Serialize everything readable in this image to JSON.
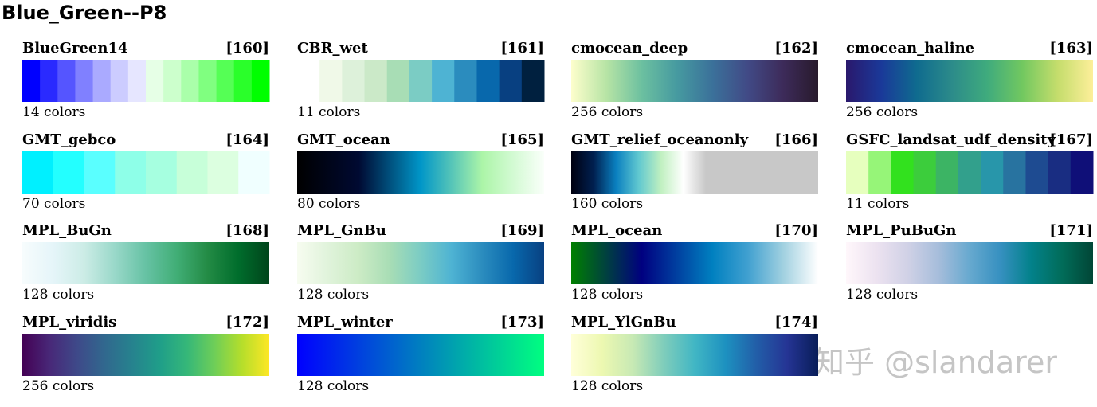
{
  "title": "Blue_Green--P8",
  "watermark": "知乎 @slandarer",
  "panels": [
    {
      "name": "BlueGreen14",
      "index": "[160]",
      "count": "14 colors",
      "discrete": true,
      "colors": [
        "#0000ff",
        "#2a2aff",
        "#5555ff",
        "#8080ff",
        "#aaaaff",
        "#ccccff",
        "#e6e6ff",
        "#e6ffe6",
        "#ccffcc",
        "#aaffaa",
        "#80ff80",
        "#55ff55",
        "#2aff2a",
        "#00ff00"
      ]
    },
    {
      "name": "CBR_wet",
      "index": "[161]",
      "count": "11 colors",
      "discrete": true,
      "colors": [
        "#ffffff",
        "#f0f9e8",
        "#ddf1da",
        "#cbe9c8",
        "#a8ddb5",
        "#7bccc4",
        "#4eb3d3",
        "#2b8cbe",
        "#0868ac",
        "#084081",
        "#00203f"
      ]
    },
    {
      "name": "cmocean_deep",
      "index": "[162]",
      "count": "256 colors",
      "discrete": false,
      "colors": [
        "#fdfecc",
        "#b7e4a5",
        "#6cc0a0",
        "#469aa0",
        "#3b719a",
        "#414a86",
        "#3d2b5a",
        "#281a2c"
      ]
    },
    {
      "name": "cmocean_haline",
      "index": "[163]",
      "count": "256 colors",
      "discrete": false,
      "colors": [
        "#2a186c",
        "#1a3999",
        "#0f6b8f",
        "#2c8b8a",
        "#3fab7d",
        "#72c860",
        "#c5dd6c",
        "#fdef9a"
      ]
    },
    {
      "name": "GMT_gebco",
      "index": "[164]",
      "count": "70 colors",
      "discrete": true,
      "colors": [
        "#00f0ff",
        "#23ffff",
        "#5affff",
        "#8effe8",
        "#a6ffe0",
        "#c7ffd9",
        "#dcffe0",
        "#f0ffff"
      ]
    },
    {
      "name": "GMT_ocean",
      "index": "[165]",
      "count": "80 colors",
      "discrete": false,
      "colors": [
        "#000000",
        "#000519",
        "#000a32",
        "#00507d",
        "#0096c8",
        "#56c5b8",
        "#acf5a8",
        "#d3fad3",
        "#fafffa"
      ]
    },
    {
      "name": "GMT_relief_oceanonly",
      "index": "[166]",
      "count": "160 colors",
      "discrete": false,
      "colors": [
        "#000010",
        "#002050",
        "#0a80c0",
        "#60c8d0",
        "#c0f0c0",
        "#ffffff",
        "#c8c8c8",
        "#c8c8c8",
        "#c8c8c8",
        "#c8c8c8",
        "#c8c8c8",
        "#c8c8c8"
      ]
    },
    {
      "name": "GSFC_landsat_udf_density",
      "index": "[167]",
      "count": "11 colors",
      "discrete": true,
      "colors": [
        "#e6ffbe",
        "#96f578",
        "#32e11e",
        "#3ccd3c",
        "#3cb464",
        "#32a08c",
        "#2896aa",
        "#2873a0",
        "#1e4b91",
        "#192d82",
        "#0f0f78"
      ]
    },
    {
      "name": "MPL_BuGn",
      "index": "[168]",
      "count": "128 colors",
      "discrete": false,
      "colors": [
        "#f7fcfd",
        "#e5f5f9",
        "#ccece6",
        "#99d8c9",
        "#66c2a4",
        "#41ae76",
        "#238b45",
        "#006d2c",
        "#00441b"
      ]
    },
    {
      "name": "MPL_GnBu",
      "index": "[169]",
      "count": "128 colors",
      "discrete": false,
      "colors": [
        "#f7fcf0",
        "#e0f3db",
        "#ccebc5",
        "#a8ddb5",
        "#7bccc4",
        "#4eb3d3",
        "#2b8cbe",
        "#0868ac",
        "#084081"
      ]
    },
    {
      "name": "MPL_ocean",
      "index": "[170]",
      "count": "128 colors",
      "discrete": false,
      "colors": [
        "#008000",
        "#004040",
        "#000080",
        "#0040a0",
        "#0080c0",
        "#40a0d0",
        "#a0d0e0",
        "#ffffff"
      ]
    },
    {
      "name": "MPL_PuBuGn",
      "index": "[171]",
      "count": "128 colors",
      "discrete": false,
      "colors": [
        "#fff7fb",
        "#ece2f0",
        "#d0d1e6",
        "#a6bddb",
        "#67a9cf",
        "#3690c0",
        "#02818a",
        "#016c59",
        "#014636"
      ]
    },
    {
      "name": "MPL_viridis",
      "index": "[172]",
      "count": "256 colors",
      "discrete": false,
      "colors": [
        "#440154",
        "#482878",
        "#3e4989",
        "#31688e",
        "#26828e",
        "#1f9e89",
        "#35b779",
        "#6ece58",
        "#b5de2b",
        "#fde725"
      ]
    },
    {
      "name": "MPL_winter",
      "index": "[173]",
      "count": "128 colors",
      "discrete": false,
      "colors": [
        "#0000ff",
        "#00ff80"
      ]
    },
    {
      "name": "MPL_YlGnBu",
      "index": "[174]",
      "count": "128 colors",
      "discrete": false,
      "colors": [
        "#ffffd9",
        "#edf8b1",
        "#c7e9b4",
        "#7fcdbb",
        "#41b6c4",
        "#1d91c0",
        "#225ea8",
        "#253494",
        "#081d58"
      ]
    }
  ]
}
